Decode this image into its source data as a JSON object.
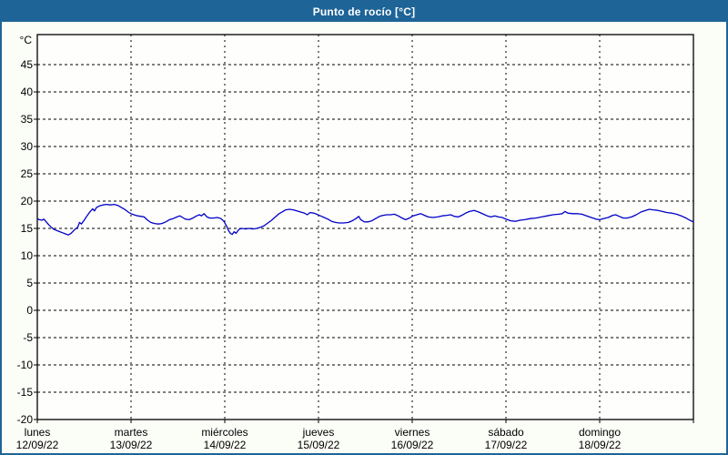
{
  "window": {
    "title": "Punto de rocío [°C]"
  },
  "colors": {
    "title_bar_bg": "#1e6497",
    "title_text": "#ffffff",
    "outer_border": "#1e6497",
    "panel_bg": "#fbfdf7",
    "plot_bg": "#fefefc",
    "grid": "#000000",
    "axis": "#000000",
    "axis_text": "#000000",
    "line": "#0000c8"
  },
  "chart_data": {
    "type": "line",
    "title": "Punto de rocío [°C]",
    "unit_label": "°C",
    "ylim": [
      -20,
      50.5
    ],
    "y_ticks": [
      45,
      40,
      35,
      30,
      25,
      20,
      15,
      10,
      5,
      0,
      -5,
      -10,
      -15,
      -20
    ],
    "x_days_span": 7,
    "grid": "dashed",
    "legend": false,
    "x_ticks": [
      {
        "day": "lunes",
        "date": "12/09/22"
      },
      {
        "day": "martes",
        "date": "13/09/22"
      },
      {
        "day": "miércoles",
        "date": "14/09/22"
      },
      {
        "day": "jueves",
        "date": "15/09/22"
      },
      {
        "day": "viernes",
        "date": "16/09/22"
      },
      {
        "day": "sábado",
        "date": "17/09/22"
      },
      {
        "day": "domingo",
        "date": "18/09/22"
      }
    ],
    "series": [
      {
        "name": "Punto de rocío",
        "color": "#0000c8",
        "points": [
          [
            0.0,
            16.8
          ],
          [
            0.02,
            16.6
          ],
          [
            0.05,
            16.5
          ],
          [
            0.07,
            16.7
          ],
          [
            0.09,
            16.3
          ],
          [
            0.12,
            15.7
          ],
          [
            0.15,
            15.2
          ],
          [
            0.18,
            14.8
          ],
          [
            0.21,
            14.6
          ],
          [
            0.24,
            14.4
          ],
          [
            0.27,
            14.2
          ],
          [
            0.3,
            14.0
          ],
          [
            0.33,
            13.8
          ],
          [
            0.36,
            14.1
          ],
          [
            0.4,
            14.8
          ],
          [
            0.43,
            15.2
          ],
          [
            0.45,
            16.1
          ],
          [
            0.47,
            15.8
          ],
          [
            0.5,
            16.5
          ],
          [
            0.53,
            17.3
          ],
          [
            0.56,
            18.0
          ],
          [
            0.59,
            18.6
          ],
          [
            0.61,
            18.2
          ],
          [
            0.63,
            18.8
          ],
          [
            0.66,
            19.1
          ],
          [
            0.7,
            19.3
          ],
          [
            0.74,
            19.4
          ],
          [
            0.78,
            19.3
          ],
          [
            0.82,
            19.4
          ],
          [
            0.86,
            19.2
          ],
          [
            0.9,
            18.8
          ],
          [
            0.94,
            18.4
          ],
          [
            0.97,
            18.0
          ],
          [
            1.0,
            17.7
          ],
          [
            1.03,
            17.5
          ],
          [
            1.07,
            17.3
          ],
          [
            1.11,
            17.2
          ],
          [
            1.14,
            17.1
          ],
          [
            1.17,
            16.6
          ],
          [
            1.21,
            16.1
          ],
          [
            1.25,
            15.9
          ],
          [
            1.29,
            15.8
          ],
          [
            1.33,
            15.9
          ],
          [
            1.37,
            16.2
          ],
          [
            1.41,
            16.6
          ],
          [
            1.45,
            16.8
          ],
          [
            1.49,
            17.1
          ],
          [
            1.52,
            17.3
          ],
          [
            1.55,
            17.0
          ],
          [
            1.58,
            16.7
          ],
          [
            1.62,
            16.6
          ],
          [
            1.66,
            16.9
          ],
          [
            1.7,
            17.3
          ],
          [
            1.73,
            17.5
          ],
          [
            1.75,
            17.3
          ],
          [
            1.78,
            17.7
          ],
          [
            1.81,
            17.1
          ],
          [
            1.84,
            16.9
          ],
          [
            1.88,
            16.9
          ],
          [
            1.92,
            17.0
          ],
          [
            1.96,
            16.8
          ],
          [
            1.99,
            16.3
          ],
          [
            2.02,
            15.4
          ],
          [
            2.04,
            14.6
          ],
          [
            2.06,
            14.1
          ],
          [
            2.08,
            13.9
          ],
          [
            2.1,
            14.4
          ],
          [
            2.12,
            14.1
          ],
          [
            2.15,
            14.8
          ],
          [
            2.18,
            15.0
          ],
          [
            2.22,
            14.9
          ],
          [
            2.26,
            15.0
          ],
          [
            2.3,
            14.9
          ],
          [
            2.34,
            15.0
          ],
          [
            2.38,
            15.2
          ],
          [
            2.42,
            15.5
          ],
          [
            2.46,
            16.0
          ],
          [
            2.5,
            16.5
          ],
          [
            2.54,
            17.1
          ],
          [
            2.58,
            17.7
          ],
          [
            2.62,
            18.1
          ],
          [
            2.65,
            18.4
          ],
          [
            2.69,
            18.5
          ],
          [
            2.73,
            18.4
          ],
          [
            2.77,
            18.2
          ],
          [
            2.81,
            18.0
          ],
          [
            2.85,
            17.8
          ],
          [
            2.88,
            17.5
          ],
          [
            2.91,
            17.9
          ],
          [
            2.95,
            17.8
          ],
          [
            2.98,
            17.6
          ],
          [
            3.02,
            17.3
          ],
          [
            3.06,
            17.0
          ],
          [
            3.1,
            16.7
          ],
          [
            3.14,
            16.3
          ],
          [
            3.18,
            16.1
          ],
          [
            3.22,
            16.0
          ],
          [
            3.27,
            16.0
          ],
          [
            3.32,
            16.1
          ],
          [
            3.36,
            16.4
          ],
          [
            3.4,
            16.8
          ],
          [
            3.43,
            17.2
          ],
          [
            3.45,
            16.6
          ],
          [
            3.49,
            16.2
          ],
          [
            3.53,
            16.2
          ],
          [
            3.57,
            16.4
          ],
          [
            3.61,
            16.8
          ],
          [
            3.65,
            17.2
          ],
          [
            3.69,
            17.4
          ],
          [
            3.73,
            17.5
          ],
          [
            3.77,
            17.5
          ],
          [
            3.81,
            17.6
          ],
          [
            3.85,
            17.3
          ],
          [
            3.89,
            16.9
          ],
          [
            3.93,
            16.6
          ],
          [
            3.97,
            16.9
          ],
          [
            4.01,
            17.3
          ],
          [
            4.05,
            17.5
          ],
          [
            4.09,
            17.7
          ],
          [
            4.13,
            17.4
          ],
          [
            4.17,
            17.1
          ],
          [
            4.22,
            17.0
          ],
          [
            4.27,
            17.1
          ],
          [
            4.32,
            17.3
          ],
          [
            4.37,
            17.4
          ],
          [
            4.41,
            17.5
          ],
          [
            4.45,
            17.2
          ],
          [
            4.49,
            17.1
          ],
          [
            4.53,
            17.4
          ],
          [
            4.57,
            17.8
          ],
          [
            4.61,
            18.1
          ],
          [
            4.66,
            18.3
          ],
          [
            4.71,
            18.0
          ],
          [
            4.76,
            17.6
          ],
          [
            4.8,
            17.3
          ],
          [
            4.84,
            17.1
          ],
          [
            4.88,
            17.3
          ],
          [
            4.92,
            17.1
          ],
          [
            4.96,
            17.0
          ],
          [
            5.0,
            16.7
          ],
          [
            5.05,
            16.4
          ],
          [
            5.1,
            16.3
          ],
          [
            5.15,
            16.5
          ],
          [
            5.2,
            16.6
          ],
          [
            5.26,
            16.8
          ],
          [
            5.32,
            16.9
          ],
          [
            5.38,
            17.1
          ],
          [
            5.44,
            17.3
          ],
          [
            5.5,
            17.5
          ],
          [
            5.56,
            17.6
          ],
          [
            5.6,
            17.7
          ],
          [
            5.63,
            18.1
          ],
          [
            5.66,
            17.8
          ],
          [
            5.71,
            17.7
          ],
          [
            5.76,
            17.7
          ],
          [
            5.81,
            17.6
          ],
          [
            5.86,
            17.3
          ],
          [
            5.91,
            17.0
          ],
          [
            5.96,
            16.7
          ],
          [
            6.0,
            16.6
          ],
          [
            6.04,
            16.8
          ],
          [
            6.09,
            17.0
          ],
          [
            6.14,
            17.4
          ],
          [
            6.17,
            17.5
          ],
          [
            6.21,
            17.2
          ],
          [
            6.25,
            16.9
          ],
          [
            6.29,
            16.9
          ],
          [
            6.34,
            17.1
          ],
          [
            6.39,
            17.5
          ],
          [
            6.44,
            18.0
          ],
          [
            6.49,
            18.3
          ],
          [
            6.53,
            18.5
          ],
          [
            6.57,
            18.4
          ],
          [
            6.62,
            18.3
          ],
          [
            6.67,
            18.1
          ],
          [
            6.72,
            17.9
          ],
          [
            6.77,
            17.8
          ],
          [
            6.82,
            17.6
          ],
          [
            6.87,
            17.3
          ],
          [
            6.92,
            16.9
          ],
          [
            6.96,
            16.5
          ],
          [
            7.0,
            16.2
          ]
        ]
      }
    ]
  }
}
